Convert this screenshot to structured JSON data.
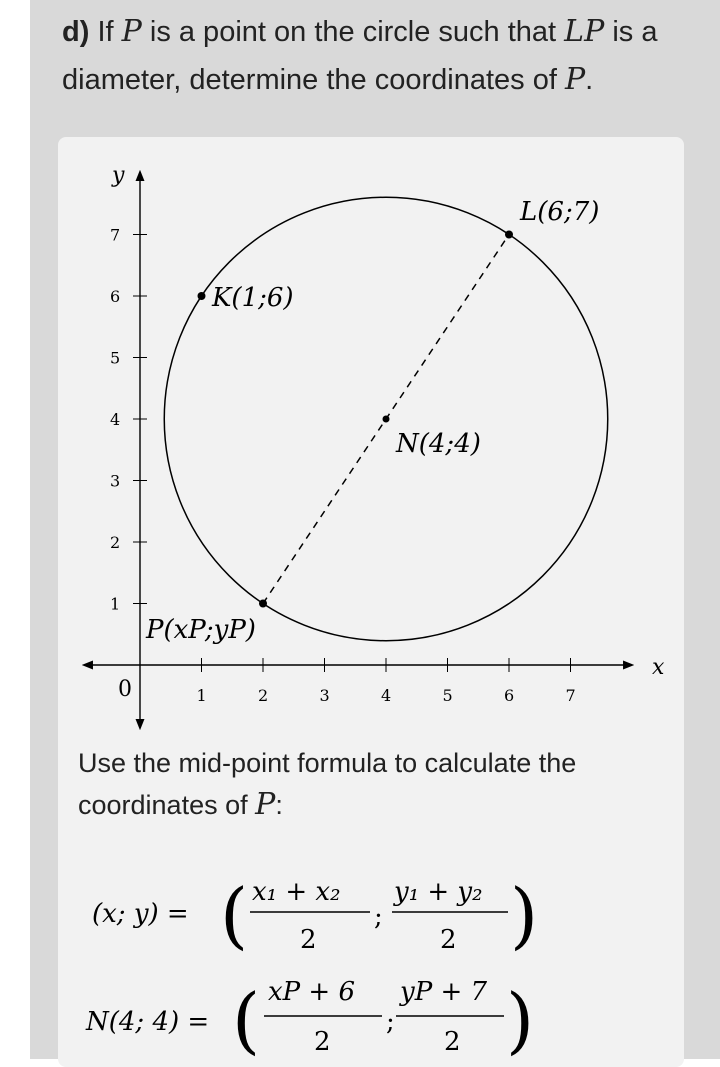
{
  "question": {
    "label": "d)",
    "text_1": "If",
    "var_p": "P",
    "text_2": "is a point on the circle such that",
    "var_lp": "LP",
    "text_3": "is a diameter, determine the coordinates of",
    "var_p2": "P",
    "text_end": "."
  },
  "graph": {
    "x_axis_label": "x",
    "y_axis_label": "y",
    "origin_label": "0",
    "x_ticks": [
      "1",
      "2",
      "3",
      "4",
      "5",
      "6",
      "7"
    ],
    "y_ticks": [
      "1",
      "2",
      "3",
      "4",
      "5",
      "6",
      "7"
    ],
    "points": {
      "K": {
        "label": "K(1;6)",
        "x": 1,
        "y": 6
      },
      "L": {
        "label": "L(6;7)",
        "x": 6,
        "y": 7
      },
      "N": {
        "label": "N(4;4)",
        "x": 4,
        "y": 4
      },
      "P": {
        "label": "P(xP;yP)",
        "x": 2,
        "y": 1
      }
    },
    "circle": {
      "center_x": 4,
      "center_y": 4,
      "radius_squared": 13
    }
  },
  "explanation": {
    "text": "Use the mid-point formula to calculate the coordinates of",
    "var": "P",
    "end": ":"
  },
  "formula": {
    "line1_lhs": "(x; y) =",
    "line1_num1": "x₁ + x₂",
    "line1_den1": "2",
    "line1_num2": "y₁ + y₂",
    "line1_den2": "2",
    "line2_lhs": "N(4; 4) =",
    "line2_num1": "xP + 6",
    "line2_den1": "2",
    "line2_num2": "yP + 7",
    "line2_den2": "2",
    "separator": ";"
  }
}
